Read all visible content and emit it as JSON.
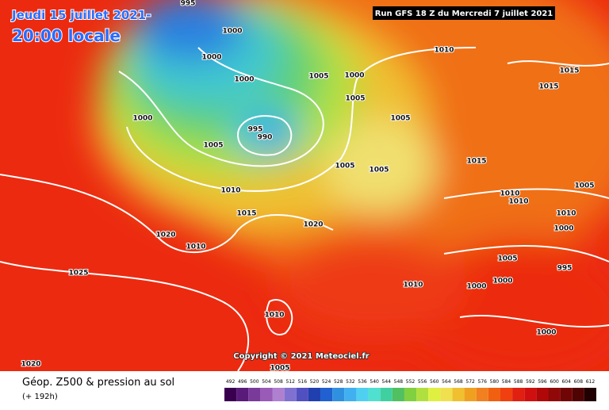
{
  "header": {
    "date": "Jeudi 15 juillet 2021-",
    "time": "20:00 locale",
    "run": "Run GFS 18 Z du Mercredi 7 juillet 2021"
  },
  "isobar_labels": [
    "995",
    "1000",
    "1000",
    "1000",
    "1005",
    "1000",
    "1010",
    "1015",
    "1015",
    "1000",
    "1005",
    "1005",
    "995",
    "990",
    "1005",
    "1005",
    "1005",
    "1015",
    "1005",
    "1010",
    "1010",
    "1010",
    "1010",
    "1015",
    "1020",
    "1000",
    "1020",
    "1010",
    "1005",
    "995",
    "1025",
    "1010",
    "1000",
    "1000",
    "1010",
    "1000",
    "1020",
    "1005"
  ],
  "copyright": "Copyright © 2021 Meteociel.fr",
  "legend": {
    "title": "Géop. Z500 & pression au sol",
    "lead": "(+ 192h)",
    "labels": [
      492,
      496,
      500,
      504,
      508,
      512,
      516,
      520,
      524,
      528,
      532,
      536,
      540,
      544,
      548,
      552,
      556,
      560,
      564,
      568,
      572,
      576,
      580,
      584,
      588,
      592,
      596,
      600,
      604,
      608,
      612
    ],
    "colors": [
      "#3a0050",
      "#5a1a7a",
      "#7a3a9a",
      "#9a5ab8",
      "#b080d0",
      "#8070d0",
      "#5050c0",
      "#2040b0",
      "#2060d0",
      "#3090e0",
      "#40b0f0",
      "#50d0f0",
      "#50e0d0",
      "#40d0a0",
      "#50c060",
      "#80d040",
      "#b0e040",
      "#e0f040",
      "#f0e050",
      "#f0c030",
      "#f0a020",
      "#f08020",
      "#f06010",
      "#f04010",
      "#e02010",
      "#d01010",
      "#b00808",
      "#900808",
      "#700505",
      "#500303",
      "#200000"
    ]
  }
}
